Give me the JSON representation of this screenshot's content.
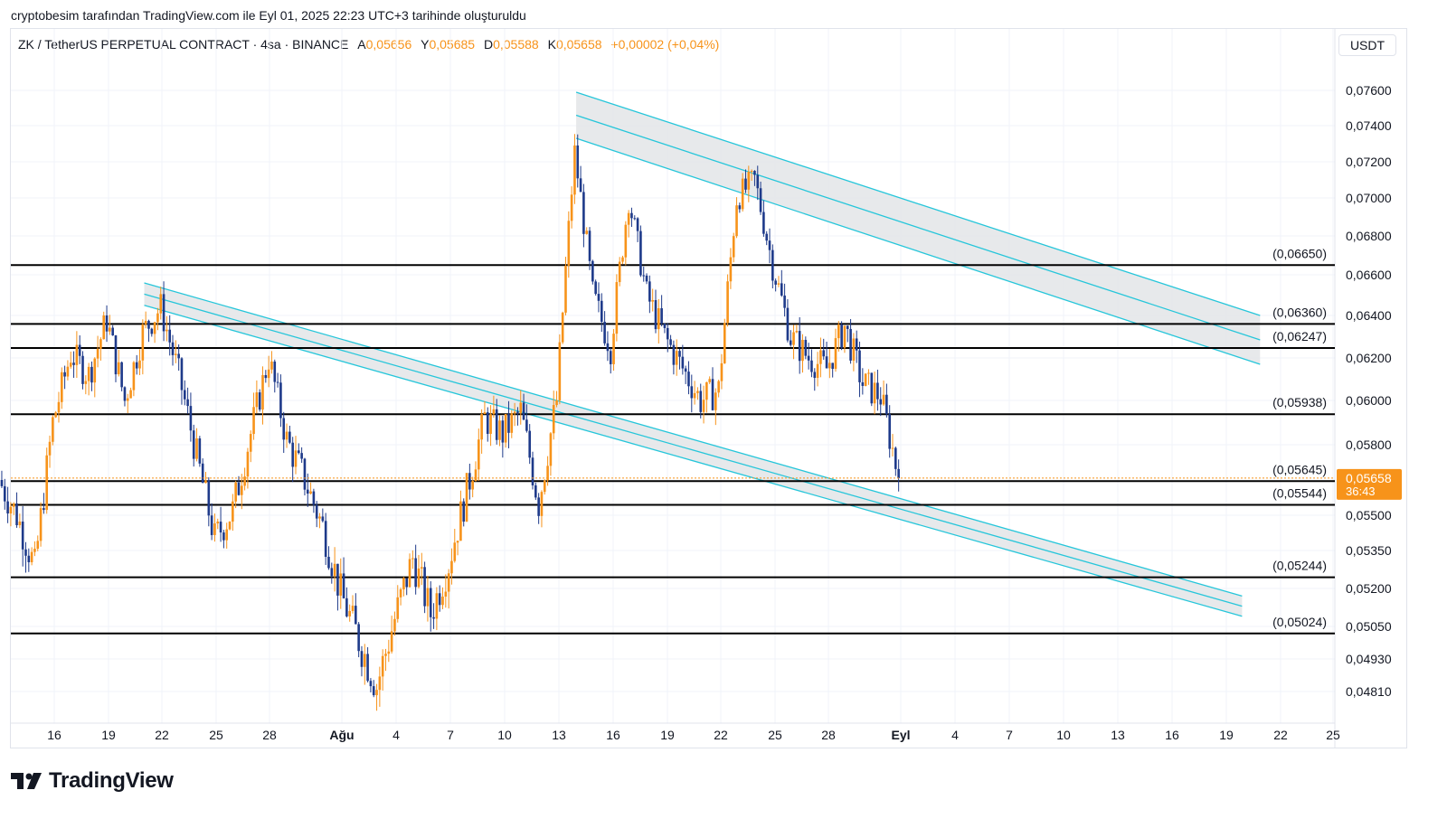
{
  "caption": "cryptobesim tarafından TradingView.com ile Eyl 01, 2025 22:23 UTC+3 tarihinde oluşturuldu",
  "legend": {
    "symbol": "ZK / TetherUS PERPETUAL CONTRACT · 4sa · BINANCE",
    "open_label": "A",
    "open": "0,05656",
    "high_label": "Y",
    "high": "0,05685",
    "low_label": "D",
    "low": "0,05588",
    "close_label": "K",
    "close": "0,05658",
    "change": "+0,00002 (+0,04%)"
  },
  "currency": "USDT",
  "brand": "TradingView",
  "price_box": {
    "price": "0,05658",
    "countdown": "36:43"
  },
  "colors": {
    "up": "#f7931a",
    "down": "#1e3a8a",
    "channel": "#26c6da",
    "channel_fill": "#e3e5e8",
    "level": "#000000",
    "price_tag": "#f7931a"
  },
  "chart_data": {
    "type": "candlestick",
    "y_ticks": [
      "0,07600",
      "0,07400",
      "0,07200",
      "0,07000",
      "0,06800",
      "0,06600",
      "0,06400",
      "0,06200",
      "0,06000",
      "0,05800",
      "0,05500",
      "0,05350",
      "0,05200",
      "0,05050",
      "0,04930",
      "0,04810"
    ],
    "x_ticks": [
      "16",
      "19",
      "22",
      "25",
      "28",
      "Ağu",
      "4",
      "7",
      "10",
      "13",
      "16",
      "19",
      "22",
      "25",
      "28",
      "Eyl",
      "4",
      "7",
      "10",
      "13",
      "16",
      "19",
      "22",
      "25"
    ],
    "levels": [
      {
        "label": "(0,06650)",
        "value": 0.0665
      },
      {
        "label": "(0,06360)",
        "value": 0.0636
      },
      {
        "label": "(0,06247)",
        "value": 0.06247
      },
      {
        "label": "(0,05938)",
        "value": 0.05938
      },
      {
        "label": "(0,05645)",
        "value": 0.05645
      },
      {
        "label": "(0,05544)",
        "value": 0.05544
      },
      {
        "label": "(0,05244)",
        "value": 0.05244
      },
      {
        "label": "(0,05024)",
        "value": 0.05024
      }
    ],
    "channels": [
      {
        "start": {
          "date": "Jul 21",
          "upper": 0.0656,
          "lower": 0.0645
        },
        "end": {
          "date": "Sep 20",
          "upper": 0.0517,
          "lower": 0.0509
        }
      },
      {
        "start": {
          "date": "Aug 14",
          "upper": 0.0759,
          "lower": 0.0733
        },
        "end": {
          "date": "Sep 21",
          "upper": 0.064,
          "lower": 0.0617
        }
      }
    ],
    "last_price": 0.05658,
    "path": [
      {
        "date": "Jul 13",
        "price": 0.0565
      },
      {
        "date": "Jul 14",
        "price": 0.055
      },
      {
        "date": "Jul 15",
        "price": 0.0528
      },
      {
        "date": "Jul 16",
        "price": 0.059
      },
      {
        "date": "Jul 17",
        "price": 0.0622
      },
      {
        "date": "Jul 18",
        "price": 0.0612
      },
      {
        "date": "Jul 19",
        "price": 0.0638
      },
      {
        "date": "Jul 20",
        "price": 0.06
      },
      {
        "date": "Jul 21",
        "price": 0.0632
      },
      {
        "date": "Jul 22",
        "price": 0.0644
      },
      {
        "date": "Jul 23",
        "price": 0.0612
      },
      {
        "date": "Jul 24",
        "price": 0.0575
      },
      {
        "date": "Jul 25",
        "price": 0.054
      },
      {
        "date": "Jul 26",
        "price": 0.0552
      },
      {
        "date": "Jul 27",
        "price": 0.0585
      },
      {
        "date": "Jul 28",
        "price": 0.062
      },
      {
        "date": "Jul 29",
        "price": 0.0582
      },
      {
        "date": "Jul 30",
        "price": 0.0565
      },
      {
        "date": "Jul 31",
        "price": 0.0545
      },
      {
        "date": "Aug 1",
        "price": 0.0518
      },
      {
        "date": "Aug 2",
        "price": 0.05
      },
      {
        "date": "Aug 3",
        "price": 0.0483
      },
      {
        "date": "Aug 4",
        "price": 0.0508
      },
      {
        "date": "Aug 5",
        "price": 0.0532
      },
      {
        "date": "Aug 6",
        "price": 0.051
      },
      {
        "date": "Aug 7",
        "price": 0.053
      },
      {
        "date": "Aug 8",
        "price": 0.056
      },
      {
        "date": "Aug 9",
        "price": 0.0592
      },
      {
        "date": "Aug 10",
        "price": 0.0585
      },
      {
        "date": "Aug 11",
        "price": 0.0595
      },
      {
        "date": "Aug 12",
        "price": 0.0555
      },
      {
        "date": "Aug 13",
        "price": 0.06
      },
      {
        "date": "Aug 14",
        "price": 0.0725
      },
      {
        "date": "Aug 15",
        "price": 0.065
      },
      {
        "date": "Aug 16",
        "price": 0.0625
      },
      {
        "date": "Aug 17",
        "price": 0.07
      },
      {
        "date": "Aug 18",
        "price": 0.065
      },
      {
        "date": "Aug 19",
        "price": 0.063
      },
      {
        "date": "Aug 20",
        "price": 0.0615
      },
      {
        "date": "Aug 21",
        "price": 0.06
      },
      {
        "date": "Aug 22",
        "price": 0.0605
      },
      {
        "date": "Aug 23",
        "price": 0.07
      },
      {
        "date": "Aug 24",
        "price": 0.071
      },
      {
        "date": "Aug 25",
        "price": 0.0665
      },
      {
        "date": "Aug 26",
        "price": 0.063
      },
      {
        "date": "Aug 27",
        "price": 0.062
      },
      {
        "date": "Aug 28",
        "price": 0.0615
      },
      {
        "date": "Aug 29",
        "price": 0.0635
      },
      {
        "date": "Aug 30",
        "price": 0.0608
      },
      {
        "date": "Aug 31",
        "price": 0.0602
      },
      {
        "date": "Sep 1",
        "price": 0.05658
      }
    ]
  }
}
